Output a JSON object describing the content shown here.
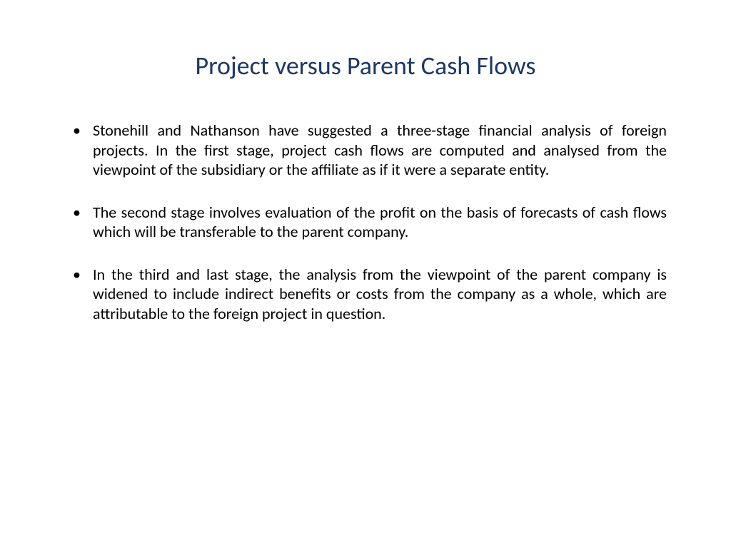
{
  "slide": {
    "title": "Project versus Parent Cash Flows",
    "title_color": "#1f3864",
    "title_fontsize": 36,
    "background_color": "#ffffff",
    "body_fontsize": 22,
    "body_color": "#000000",
    "bullets": [
      "Stonehill and Nathanson have suggested a three-stage financial analysis of foreign projects. In the first stage, project cash flows are computed and analysed from the viewpoint of the subsidiary or the affiliate as if it were a separate entity.",
      "The second stage involves evaluation of the profit on the basis of forecasts of cash flows which will be transferable to the parent company.",
      "In the third and last stage, the analysis from the viewpoint of the parent company is widened to include indirect benefits or costs from the company as a whole, which are attributable to the foreign project in question."
    ]
  }
}
